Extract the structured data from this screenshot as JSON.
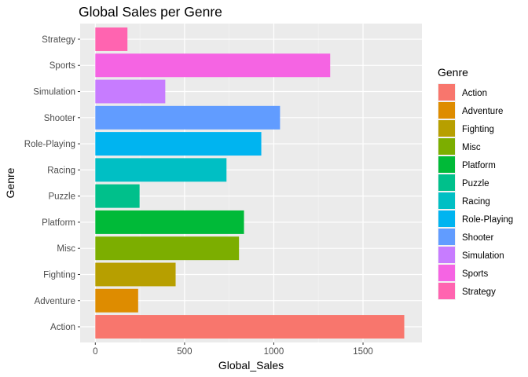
{
  "chart_data": {
    "type": "bar",
    "orientation": "horizontal",
    "title": "Global Sales per Genre",
    "xlabel": "Global_Sales",
    "ylabel": "Genre",
    "xlim": [
      -85,
      1830
    ],
    "x_ticks": [
      0,
      500,
      1000,
      1500
    ],
    "x_tick_labels": [
      "0",
      "500",
      "1000",
      "1500"
    ],
    "grid": true,
    "legend": {
      "title": "Genre",
      "placement": "right"
    },
    "categories": [
      "Action",
      "Adventure",
      "Fighting",
      "Misc",
      "Platform",
      "Puzzle",
      "Racing",
      "Role-Playing",
      "Shooter",
      "Simulation",
      "Sports",
      "Strategy"
    ],
    "values": [
      1731,
      240,
      450,
      805,
      833,
      248,
      735,
      930,
      1035,
      392,
      1316,
      180
    ],
    "colors": [
      "#F8766D",
      "#DE8C00",
      "#B79F00",
      "#7CAE00",
      "#00BA38",
      "#00C08B",
      "#00BFC4",
      "#00B4F0",
      "#619CFF",
      "#C77CFF",
      "#F564E3",
      "#FF64B0"
    ]
  }
}
